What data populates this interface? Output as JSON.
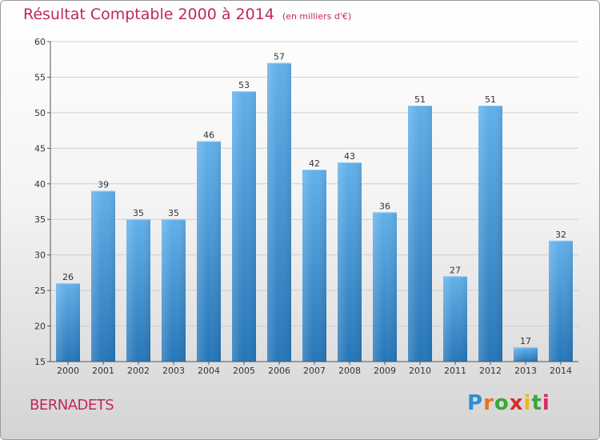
{
  "header": {
    "title": "Résultat Comptable 2000 à 2014",
    "unit": "(en milliers d'€)"
  },
  "footer": {
    "commune": "BERNADETS",
    "logo": "Proxiti"
  },
  "colors": {
    "accent": "#c0285a",
    "bar_top": "#62b1ea",
    "bar_bottom": "#2676b8"
  },
  "chart_data": {
    "type": "bar",
    "title": "Résultat Comptable 2000 à 2014",
    "xlabel": "",
    "ylabel": "",
    "ylim": [
      15,
      60
    ],
    "yticks": [
      15,
      20,
      25,
      30,
      35,
      40,
      45,
      50,
      55,
      60
    ],
    "grid": true,
    "categories": [
      "2000",
      "2001",
      "2002",
      "2003",
      "2004",
      "2005",
      "2006",
      "2007",
      "2008",
      "2009",
      "2010",
      "2011",
      "2012",
      "2013",
      "2014"
    ],
    "values": [
      26,
      39,
      35,
      35,
      46,
      53,
      57,
      42,
      43,
      36,
      51,
      27,
      51,
      17,
      32
    ]
  }
}
